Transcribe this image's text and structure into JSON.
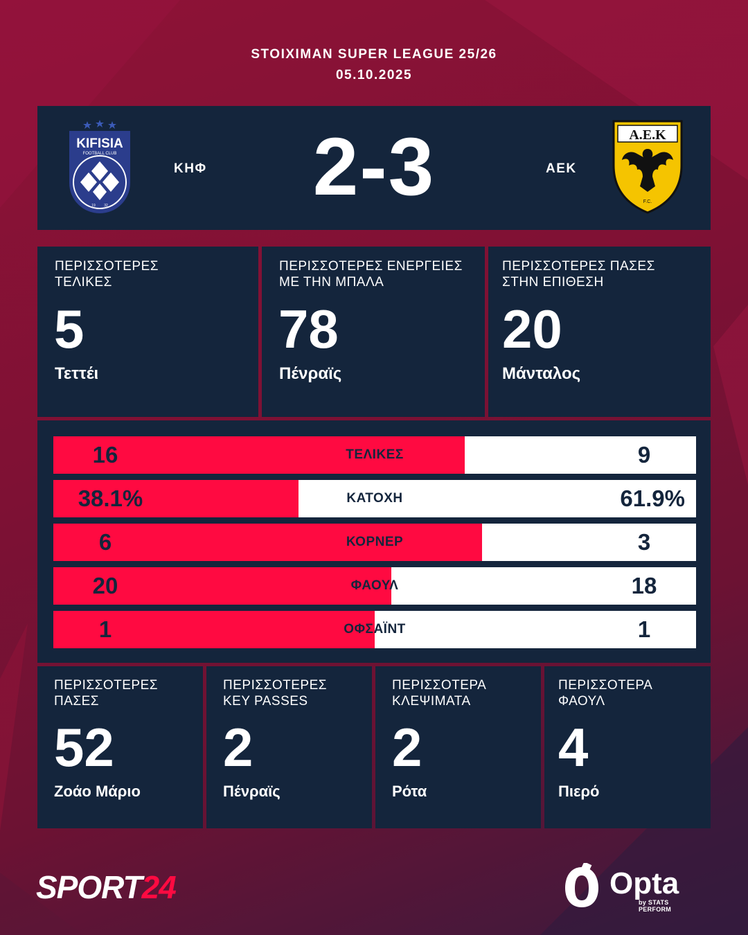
{
  "header": {
    "league": "STOIXIMAN SUPER LEAGUE 25/26",
    "date": "05.10.2025"
  },
  "match": {
    "home": {
      "abbr": "ΚΗΦ",
      "crest_text": "KIFISIA",
      "crest_sub": "FOOTBALL CLUB",
      "crest_year_left": "19",
      "crest_year_right": "32",
      "color": "#2b3d8c"
    },
    "away": {
      "abbr": "ΑΕΚ",
      "crest_text": "Α.Ε.Κ",
      "crest_sub": "F.C.",
      "color": "#f5c400"
    },
    "score": "2-3"
  },
  "top_stats": [
    {
      "label_1": "ΠΕΡΙΣΣΟΤΕΡΕΣ",
      "label_2": "ΤΕΛΙΚΕΣ",
      "value": "5",
      "player": "Τεττέι"
    },
    {
      "label_1": "ΠΕΡΙΣΣΟΤΕΡΕΣ ΕΝΕΡΓΕΙΕΣ",
      "label_2": "ΜΕ ΤΗΝ ΜΠΑΛΑ",
      "value": "78",
      "player": "Πένραϊς"
    },
    {
      "label_1": "ΠΕΡΙΣΣΟΤΕΡΕΣ ΠΑΣΕΣ",
      "label_2": "ΣΤΗΝ ΕΠΙΘΕΣΗ",
      "value": "20",
      "player": "Μάνταλος"
    }
  ],
  "comparison": [
    {
      "label": "ΤΕΛΙΚΕΣ",
      "home": "16",
      "away": "9",
      "home_share": 0.64
    },
    {
      "label": "ΚΑΤΟΧΗ",
      "home": "38.1%",
      "away": "61.9%",
      "home_share": 0.381
    },
    {
      "label": "ΚΟΡΝΕΡ",
      "home": "6",
      "away": "3",
      "home_share": 0.667
    },
    {
      "label": "ΦΑΟΥΛ",
      "home": "20",
      "away": "18",
      "home_share": 0.526
    },
    {
      "label": "ΟΦΣΑΪΝΤ",
      "home": "1",
      "away": "1",
      "home_share": 0.5
    }
  ],
  "bottom_stats": [
    {
      "label_1": "ΠΕΡΙΣΣΟΤΕΡΕΣ",
      "label_2": "ΠΑΣΕΣ",
      "value": "52",
      "player": "Ζοάο Μάριο"
    },
    {
      "label_1": "ΠΕΡΙΣΣΟΤΕΡΕΣ",
      "label_2": "KEY PASSES",
      "value": "2",
      "player": "Πένραϊς"
    },
    {
      "label_1": "ΠΕΡΙΣΣΟΤΕΡΑ",
      "label_2": "ΚΛΕΨΙΜΑΤΑ",
      "value": "2",
      "player": "Ρότα"
    },
    {
      "label_1": "ΠΕΡΙΣΣΟΤΕΡΑ",
      "label_2": "ΦΑΟΥΛ",
      "value": "4",
      "player": "Πιερό"
    }
  ],
  "footer": {
    "brand_a": "SPORT",
    "brand_b": "24",
    "opta": "Opta",
    "opta_by": "by STATS PERFORM"
  },
  "colors": {
    "panel": "#14253c",
    "accent": "#ff0a41",
    "background": "#7f1134"
  }
}
